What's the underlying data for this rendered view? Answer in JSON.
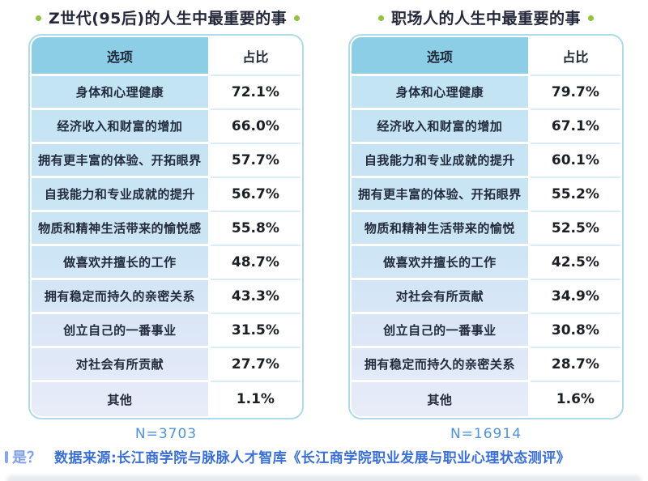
{
  "chart_data": [
    {
      "type": "table",
      "title": "Z世代(95后)的人生中最重要的事",
      "columns": [
        "选项",
        "占比"
      ],
      "categories": [
        "身体和心理健康",
        "经济收入和财富的增加",
        "拥有更丰富的体验、开拓眼界",
        "自我能力和专业成就的提升",
        "物质和精神生活带来的愉悦感",
        "做喜欢并擅长的工作",
        "拥有稳定而持久的亲密关系",
        "创立自己的一番事业",
        "对社会有所贡献",
        "其他"
      ],
      "values": [
        72.1,
        66.0,
        57.7,
        56.7,
        55.8,
        48.7,
        43.3,
        31.5,
        27.7,
        1.1
      ],
      "value_labels": [
        "72.1%",
        "66.0%",
        "57.7%",
        "56.7%",
        "55.8%",
        "48.7%",
        "43.3%",
        "31.5%",
        "27.7%",
        "1.1%"
      ],
      "sample_label": "N=3703",
      "sample_size": 3703
    },
    {
      "type": "table",
      "title": "职场人的人生中最重要的事",
      "columns": [
        "选项",
        "占比"
      ],
      "categories": [
        "身体和心理健康",
        "经济收入和财富的增加",
        "自我能力和专业成就的提升",
        "拥有更丰富的体验、开拓眼界",
        "物质和精神生活带来的愉悦",
        "做喜欢并擅长的工作",
        "对社会有所贡献",
        "创立自己的一番事业",
        "拥有稳定而持久的亲密关系",
        "其他"
      ],
      "values": [
        79.7,
        67.1,
        60.1,
        55.2,
        52.5,
        42.5,
        34.9,
        30.8,
        28.7,
        1.6
      ],
      "value_labels": [
        "79.7%",
        "67.1%",
        "60.1%",
        "55.2%",
        "52.5%",
        "42.5%",
        "34.9%",
        "30.8%",
        "28.7%",
        "1.6%"
      ],
      "sample_label": "N=16914",
      "sample_size": 16914
    }
  ],
  "footer": {
    "partial_text": "是？",
    "source_text": "数据来源:长江商学院与脉脉人才智库《长江商学院职业发展与职业心理状态测评》"
  },
  "colors": {
    "title_dot": "#8fc440",
    "title_text": "#23283a",
    "header_option_bg": "#8ccee5",
    "option_column_top": "#c2e4f3",
    "option_column_bottom": "#e9ecf8",
    "table_border": "#afdaeb",
    "percent_separator": "#d9edf6",
    "n_label_text": "#4f93d8",
    "source_text": "#3a6fd6",
    "partial_text": "#7f9fe6"
  }
}
